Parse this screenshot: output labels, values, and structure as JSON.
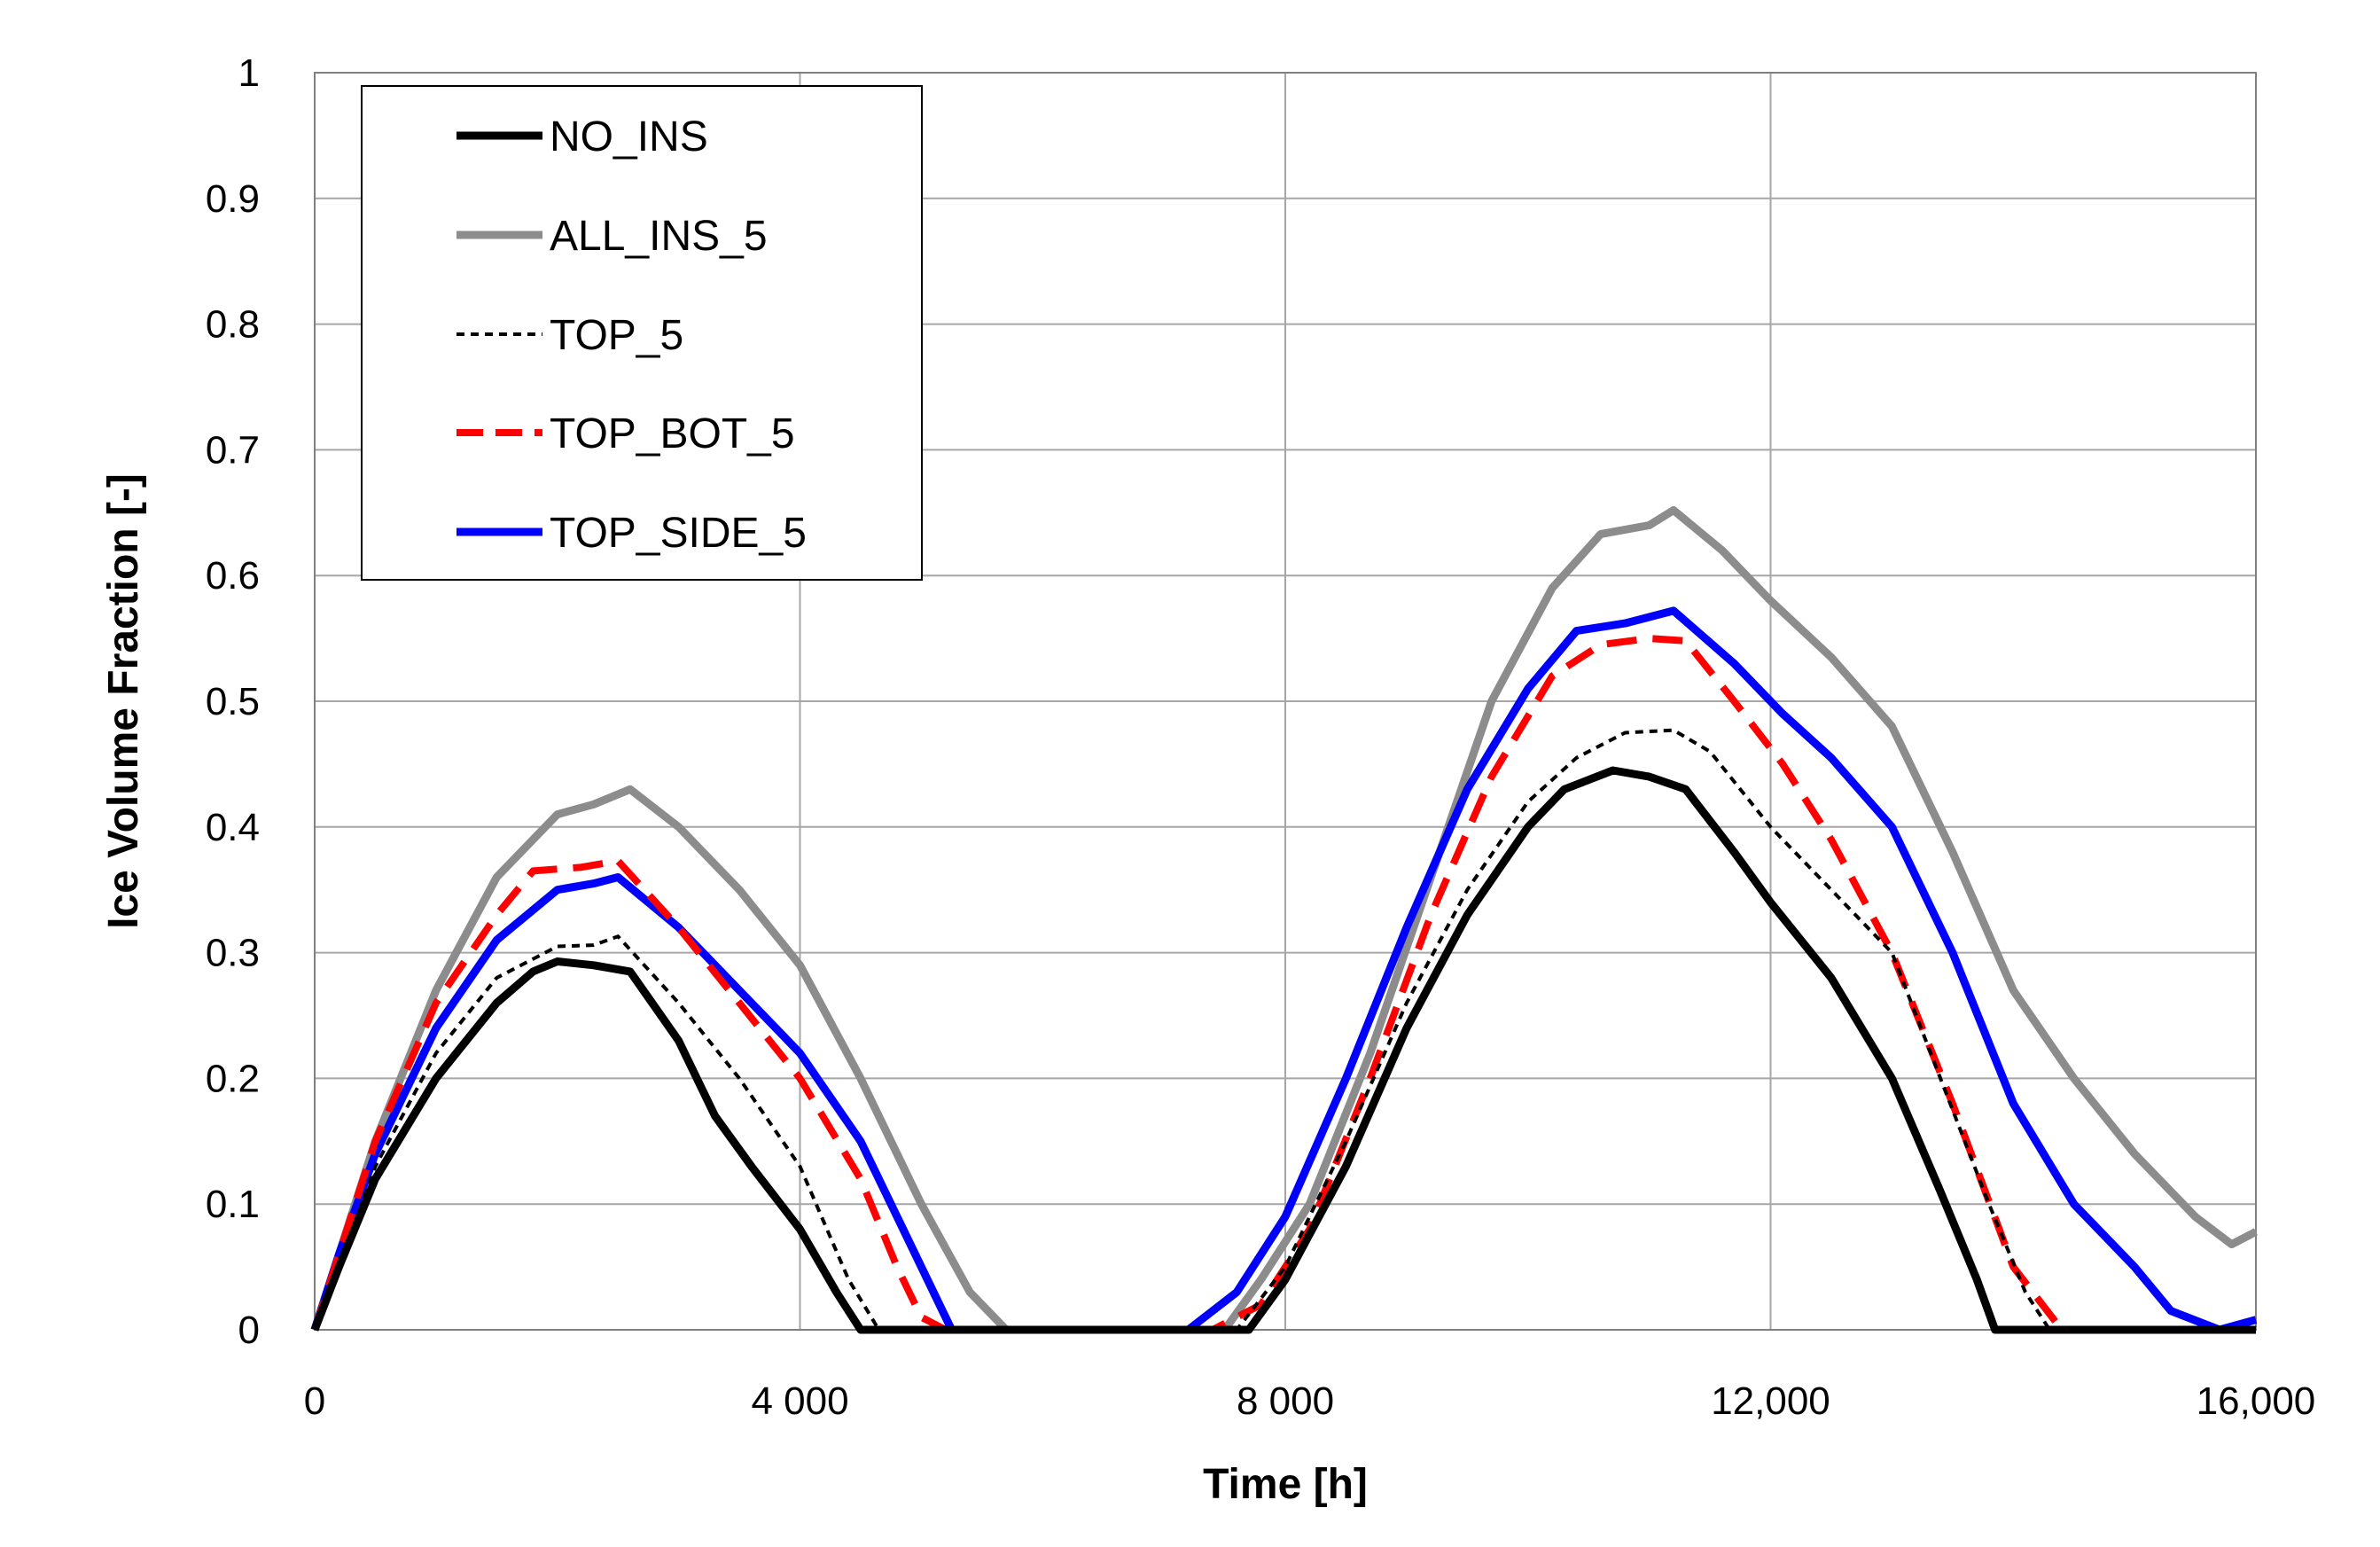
{
  "chart_data": {
    "type": "line",
    "title": "",
    "xlabel": "Time [h]",
    "ylabel": "Ice Volume Fraction [-]",
    "xlim": [
      0,
      16000
    ],
    "ylim": [
      0,
      1
    ],
    "xticks": [
      0,
      4000,
      8000,
      12000,
      16000
    ],
    "xtick_labels": [
      "0",
      "4 000",
      "8 000",
      "12,000",
      "16,000"
    ],
    "yticks": [
      0,
      0.1,
      0.2,
      0.3,
      0.4,
      0.5,
      0.6,
      0.7,
      0.8,
      0.9,
      1
    ],
    "ytick_labels": [
      "0",
      "0.1",
      "0.2",
      "0.3",
      "0.4",
      "0.5",
      "0.6",
      "0.7",
      "0.8",
      "0.9",
      "1"
    ],
    "grid": true,
    "legend_position": "top-left",
    "series": [
      {
        "name": "NO_INS",
        "color": "#000000",
        "dash": "solid",
        "points": [
          [
            0,
            0
          ],
          [
            200,
            0.05
          ],
          [
            500,
            0.12
          ],
          [
            1000,
            0.2
          ],
          [
            1500,
            0.26
          ],
          [
            1800,
            0.285
          ],
          [
            2000,
            0.293
          ],
          [
            2300,
            0.29
          ],
          [
            2600,
            0.285
          ],
          [
            3000,
            0.23
          ],
          [
            3300,
            0.17
          ],
          [
            3600,
            0.13
          ],
          [
            4000,
            0.08
          ],
          [
            4300,
            0.03
          ],
          [
            4500,
            0
          ],
          [
            7700,
            0
          ],
          [
            8000,
            0.04
          ],
          [
            8500,
            0.13
          ],
          [
            9000,
            0.24
          ],
          [
            9500,
            0.33
          ],
          [
            10000,
            0.4
          ],
          [
            10300,
            0.43
          ],
          [
            10700,
            0.445
          ],
          [
            11000,
            0.44
          ],
          [
            11300,
            0.43
          ],
          [
            11700,
            0.38
          ],
          [
            12000,
            0.34
          ],
          [
            12500,
            0.28
          ],
          [
            13000,
            0.2
          ],
          [
            13400,
            0.11
          ],
          [
            13700,
            0.04
          ],
          [
            13850,
            0
          ],
          [
            16000,
            0
          ]
        ]
      },
      {
        "name": "ALL_INS_5",
        "color": "#8c8c8c",
        "dash": "solid",
        "points": [
          [
            0,
            0
          ],
          [
            200,
            0.06
          ],
          [
            500,
            0.15
          ],
          [
            1000,
            0.27
          ],
          [
            1500,
            0.36
          ],
          [
            2000,
            0.41
          ],
          [
            2300,
            0.418
          ],
          [
            2600,
            0.43
          ],
          [
            3000,
            0.4
          ],
          [
            3500,
            0.35
          ],
          [
            4000,
            0.29
          ],
          [
            4500,
            0.2
          ],
          [
            5000,
            0.1
          ],
          [
            5400,
            0.03
          ],
          [
            5700,
            0
          ],
          [
            7500,
            0
          ],
          [
            7800,
            0.04
          ],
          [
            8200,
            0.1
          ],
          [
            8700,
            0.22
          ],
          [
            9200,
            0.36
          ],
          [
            9700,
            0.5
          ],
          [
            10200,
            0.59
          ],
          [
            10600,
            0.633
          ],
          [
            11000,
            0.64
          ],
          [
            11200,
            0.652
          ],
          [
            11600,
            0.62
          ],
          [
            12000,
            0.58
          ],
          [
            12500,
            0.535
          ],
          [
            13000,
            0.48
          ],
          [
            13500,
            0.38
          ],
          [
            14000,
            0.27
          ],
          [
            14500,
            0.2
          ],
          [
            15000,
            0.14
          ],
          [
            15500,
            0.09
          ],
          [
            15800,
            0.068
          ],
          [
            16000,
            0.078
          ]
        ]
      },
      {
        "name": "TOP_5",
        "color": "#000000",
        "dash": "dashed",
        "points": [
          [
            0,
            0
          ],
          [
            200,
            0.05
          ],
          [
            500,
            0.13
          ],
          [
            1000,
            0.22
          ],
          [
            1500,
            0.28
          ],
          [
            2000,
            0.305
          ],
          [
            2300,
            0.306
          ],
          [
            2500,
            0.313
          ],
          [
            3000,
            0.26
          ],
          [
            3500,
            0.2
          ],
          [
            4000,
            0.13
          ],
          [
            4400,
            0.04
          ],
          [
            4650,
            0
          ],
          [
            7600,
            0
          ],
          [
            8000,
            0.05
          ],
          [
            8500,
            0.15
          ],
          [
            9000,
            0.26
          ],
          [
            9500,
            0.35
          ],
          [
            10000,
            0.42
          ],
          [
            10400,
            0.455
          ],
          [
            10800,
            0.475
          ],
          [
            11200,
            0.477
          ],
          [
            11500,
            0.46
          ],
          [
            12000,
            0.4
          ],
          [
            12500,
            0.35
          ],
          [
            13000,
            0.3
          ],
          [
            13400,
            0.2
          ],
          [
            13800,
            0.1
          ],
          [
            14100,
            0.03
          ],
          [
            14300,
            0
          ],
          [
            16000,
            0
          ]
        ]
      },
      {
        "name": "TOP_BOT_5",
        "color": "#ff0000",
        "dash": "longdash",
        "points": [
          [
            0,
            0
          ],
          [
            200,
            0.06
          ],
          [
            500,
            0.15
          ],
          [
            1000,
            0.26
          ],
          [
            1500,
            0.33
          ],
          [
            1800,
            0.365
          ],
          [
            2200,
            0.368
          ],
          [
            2500,
            0.373
          ],
          [
            3000,
            0.32
          ],
          [
            3500,
            0.26
          ],
          [
            4000,
            0.2
          ],
          [
            4500,
            0.12
          ],
          [
            4800,
            0.05
          ],
          [
            5000,
            0.01
          ],
          [
            5200,
            0
          ],
          [
            7400,
            0
          ],
          [
            7800,
            0.02
          ],
          [
            8200,
            0.08
          ],
          [
            8700,
            0.2
          ],
          [
            9200,
            0.33
          ],
          [
            9700,
            0.44
          ],
          [
            10200,
            0.52
          ],
          [
            10600,
            0.545
          ],
          [
            11000,
            0.55
          ],
          [
            11300,
            0.548
          ],
          [
            11700,
            0.5
          ],
          [
            12100,
            0.45
          ],
          [
            12500,
            0.39
          ],
          [
            13000,
            0.3
          ],
          [
            13500,
            0.18
          ],
          [
            14000,
            0.05
          ],
          [
            14400,
            0
          ],
          [
            16000,
            0
          ]
        ]
      },
      {
        "name": "TOP_SIDE_5",
        "color": "#0000ff",
        "dash": "solid",
        "points": [
          [
            0,
            0
          ],
          [
            200,
            0.06
          ],
          [
            500,
            0.14
          ],
          [
            1000,
            0.24
          ],
          [
            1500,
            0.31
          ],
          [
            2000,
            0.35
          ],
          [
            2300,
            0.355
          ],
          [
            2500,
            0.36
          ],
          [
            3000,
            0.32
          ],
          [
            3500,
            0.27
          ],
          [
            4000,
            0.22
          ],
          [
            4500,
            0.15
          ],
          [
            4900,
            0.07
          ],
          [
            5100,
            0.03
          ],
          [
            5250,
            0
          ],
          [
            7200,
            0
          ],
          [
            7600,
            0.03
          ],
          [
            8000,
            0.09
          ],
          [
            8500,
            0.2
          ],
          [
            9000,
            0.32
          ],
          [
            9500,
            0.43
          ],
          [
            10000,
            0.51
          ],
          [
            10400,
            0.556
          ],
          [
            10800,
            0.562
          ],
          [
            11200,
            0.572
          ],
          [
            11700,
            0.53
          ],
          [
            12100,
            0.49
          ],
          [
            12500,
            0.455
          ],
          [
            13000,
            0.4
          ],
          [
            13500,
            0.3
          ],
          [
            14000,
            0.18
          ],
          [
            14500,
            0.1
          ],
          [
            15000,
            0.05
          ],
          [
            15300,
            0.015
          ],
          [
            15700,
            0
          ],
          [
            16000,
            0.008
          ]
        ]
      }
    ]
  },
  "legend": {
    "items": [
      "NO_INS",
      "ALL_INS_5",
      "TOP_5",
      "TOP_BOT_5",
      "TOP_SIDE_5"
    ]
  }
}
